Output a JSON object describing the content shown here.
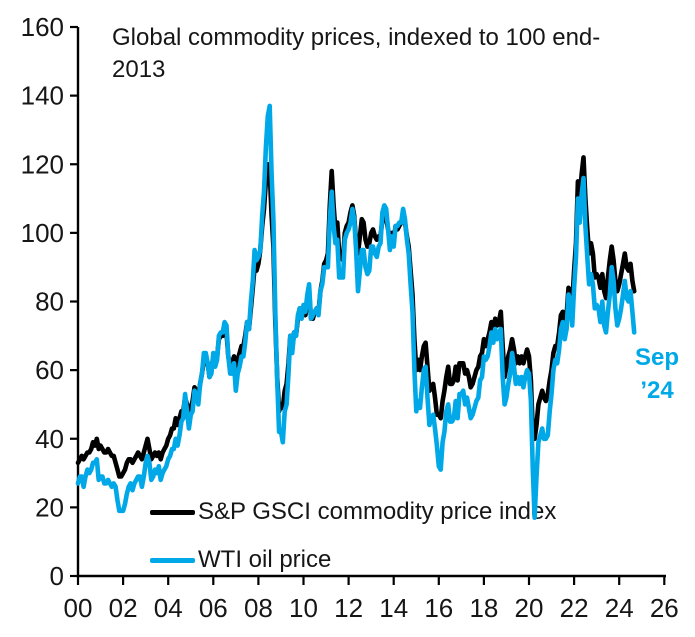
{
  "title_line1": "Global commodity prices, indexed to 100 end-",
  "title_line2": "2013",
  "annotation": {
    "line1": "Sep",
    "line2": "’24"
  },
  "legend": {
    "gsci_label": "S&P GSCI commodity price index",
    "wti_label": "WTI oil price"
  },
  "colors": {
    "gsci": "#000000",
    "wti": "#00A8E8",
    "annotation": "#00A8E8",
    "axis": "#000000",
    "text": "#161616"
  },
  "chart_data": {
    "type": "line",
    "title": "Global commodity prices, indexed to 100 end-2013",
    "xlabel": "",
    "ylabel": "",
    "x_unit": "year",
    "x_start_year": 2000,
    "points_per_year": 12,
    "last_point_label": "Sep '24",
    "xlim_years": [
      2000,
      2026.2
    ],
    "ylim": [
      0,
      160
    ],
    "y_ticks": [
      0,
      20,
      40,
      60,
      80,
      100,
      120,
      140,
      160
    ],
    "x_tick_labels": [
      "00",
      "02",
      "04",
      "06",
      "08",
      "10",
      "12",
      "14",
      "16",
      "18",
      "20",
      "22",
      "24",
      "26"
    ],
    "grid": false,
    "legend_position": "inside-bottom-left",
    "series": [
      {
        "key": "gsci",
        "name": "S&P GSCI commodity price index",
        "color": "#000000",
        "values": [
          33,
          34,
          35,
          34,
          35,
          36,
          36,
          37,
          39,
          38,
          40,
          37,
          38,
          37,
          36,
          36,
          37,
          36,
          35,
          35,
          33,
          31,
          29,
          29,
          30,
          31,
          33,
          34,
          34,
          33,
          34,
          35,
          36,
          35,
          34,
          36,
          38,
          40,
          37,
          34,
          35,
          36,
          35,
          36,
          34,
          36,
          37,
          38,
          40,
          41,
          43,
          43,
          46,
          44,
          46,
          48,
          48,
          52,
          50,
          47,
          49,
          51,
          55,
          54,
          52,
          56,
          59,
          63,
          64,
          62,
          58,
          60,
          64,
          62,
          64,
          69,
          70,
          70,
          73,
          71,
          64,
          61,
          62,
          64,
          60,
          63,
          65,
          67,
          67,
          70,
          74,
          72,
          78,
          84,
          90,
          89,
          91,
          95,
          102,
          107,
          115,
          120,
          118,
          105,
          96,
          74,
          58,
          48,
          50,
          49,
          54,
          56,
          62,
          70,
          66,
          71,
          70,
          75,
          78,
          76,
          78,
          76,
          80,
          83,
          75,
          75,
          77,
          78,
          77,
          83,
          86,
          91,
          92,
          94,
          108,
          118,
          108,
          101,
          103,
          94,
          93,
          92,
          100,
          102,
          103,
          106,
          108,
          105,
          97,
          94,
          99,
          104,
          103,
          98,
          96,
          97,
          100,
          101,
          99,
          98,
          99,
          99,
          104,
          105,
          104,
          101,
          98,
          100,
          98,
          102,
          101,
          102,
          103,
          105,
          103,
          99,
          96,
          89,
          82,
          69,
          60,
          63,
          60,
          64,
          67,
          68,
          61,
          54,
          55,
          56,
          52,
          47,
          47,
          46,
          51,
          54,
          58,
          61,
          56,
          56,
          57,
          61,
          57,
          62,
          62,
          62,
          59,
          60,
          58,
          55,
          56,
          58,
          60,
          61,
          64,
          65,
          69,
          67,
          69,
          71,
          74,
          72,
          75,
          73,
          74,
          77,
          67,
          58,
          61,
          64,
          66,
          69,
          66,
          62,
          64,
          62,
          64,
          62,
          64,
          66,
          64,
          57,
          42,
          40,
          44,
          50,
          52,
          54,
          52,
          51,
          53,
          57,
          60,
          65,
          67,
          67,
          71,
          76,
          77,
          73,
          76,
          84,
          83,
          79,
          89,
          97,
          115,
          110,
          117,
          122,
          110,
          101,
          94,
          97,
          94,
          87,
          88,
          87,
          84,
          88,
          83,
          81,
          87,
          92,
          96,
          92,
          86,
          83,
          85,
          88,
          91,
          94,
          90,
          89,
          91,
          86,
          83
        ]
      },
      {
        "key": "wti",
        "name": "WTI oil price",
        "color": "#00A8E8",
        "values": [
          27,
          29,
          29,
          26,
          29,
          31,
          30,
          31,
          33,
          33,
          34,
          28,
          29,
          29,
          27,
          27,
          28,
          27,
          26,
          27,
          26,
          22,
          19,
          19,
          19,
          21,
          24,
          26,
          27,
          25,
          27,
          28,
          29,
          29,
          26,
          29,
          33,
          35,
          33,
          28,
          29,
          31,
          30,
          32,
          28,
          30,
          31,
          32,
          34,
          35,
          37,
          37,
          40,
          38,
          41,
          45,
          46,
          53,
          48,
          43,
          47,
          48,
          54,
          53,
          50,
          56,
          59,
          65,
          65,
          62,
          58,
          59,
          65,
          61,
          63,
          70,
          71,
          71,
          74,
          73,
          64,
          59,
          59,
          62,
          54,
          59,
          61,
          64,
          64,
          68,
          74,
          72,
          80,
          86,
          95,
          92,
          93,
          95,
          105,
          112,
          125,
          134,
          137,
          117,
          104,
          77,
          57,
          42,
          42,
          39,
          48,
          50,
          59,
          70,
          65,
          71,
          70,
          76,
          78,
          75,
          79,
          77,
          82,
          85,
          75,
          76,
          77,
          78,
          76,
          83,
          85,
          90,
          90,
          90,
          104,
          112,
          102,
          97,
          98,
          87,
          87,
          87,
          98,
          100,
          101,
          103,
          107,
          104,
          95,
          83,
          89,
          95,
          95,
          90,
          88,
          89,
          96,
          96,
          94,
          93,
          96,
          97,
          106,
          108,
          107,
          101,
          95,
          99,
          96,
          102,
          102,
          103,
          103,
          107,
          104,
          98,
          94,
          85,
          77,
          60,
          48,
          51,
          49,
          55,
          60,
          61,
          52,
          44,
          46,
          47,
          43,
          38,
          32,
          31,
          39,
          42,
          48,
          50,
          45,
          45,
          46,
          51,
          46,
          53,
          53,
          54,
          50,
          52,
          49,
          46,
          47,
          49,
          51,
          52,
          57,
          58,
          64,
          63,
          64,
          67,
          71,
          68,
          72,
          69,
          71,
          72,
          58,
          50,
          52,
          56,
          59,
          65,
          61,
          56,
          58,
          56,
          58,
          55,
          58,
          60,
          59,
          51,
          31,
          17,
          29,
          39,
          41,
          43,
          40,
          40,
          41,
          48,
          53,
          60,
          63,
          62,
          66,
          72,
          74,
          69,
          72,
          82,
          80,
          73,
          84,
          93,
          110,
          103,
          111,
          116,
          102,
          93,
          85,
          88,
          85,
          78,
          79,
          78,
          74,
          80,
          73,
          71,
          77,
          82,
          90,
          86,
          78,
          73,
          75,
          78,
          82,
          86,
          81,
          80,
          83,
          77,
          71
        ]
      }
    ]
  }
}
